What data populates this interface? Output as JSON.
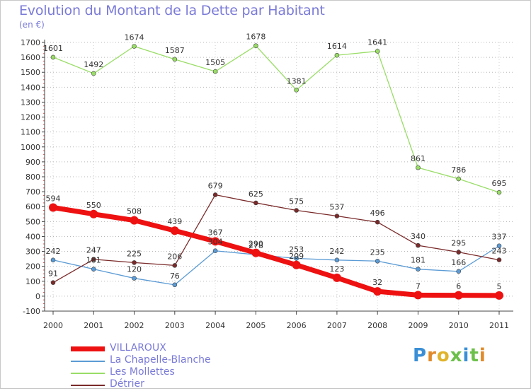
{
  "title": "Evolution du Montant de la Dette par Habitant",
  "unit": "(en €)",
  "logo": {
    "text": "Proxiti",
    "letter_colors": [
      "#3a8fd6",
      "#e08a2a",
      "#e0b32a",
      "#6cc04a",
      "#3a8fd6",
      "#6cc04a",
      "#e08a2a"
    ]
  },
  "chart_data": {
    "type": "line",
    "title": "Evolution du Montant de la Dette par Habitant",
    "subtitle": "(en €)",
    "x": [
      "2000",
      "2001",
      "2002",
      "2003",
      "2004",
      "2005",
      "2006",
      "2007",
      "2008",
      "2009",
      "2010",
      "2011"
    ],
    "yticks": [
      -100,
      0,
      100,
      200,
      300,
      400,
      500,
      600,
      700,
      800,
      900,
      1000,
      1100,
      1200,
      1300,
      1400,
      1500,
      1600,
      1700
    ],
    "ylim": [
      -100,
      1700
    ],
    "grid": "horizontal-dotted",
    "legend_position": "bottom-left",
    "series": [
      {
        "name": "La Chapelle-Blanche",
        "color": "#5b9bd5",
        "width": 1.3,
        "values": [
          242,
          181,
          120,
          76,
          304,
          278,
          253,
          242,
          235,
          181,
          166,
          337
        ],
        "labels": [
          "242",
          "181",
          "120",
          "76",
          "304",
          "278",
          "253",
          "242",
          "235",
          "181",
          "166",
          "337"
        ]
      },
      {
        "name": "Les Mollettes",
        "color": "#99dd66",
        "width": 1.3,
        "values": [
          1601,
          1492,
          1674,
          1587,
          1505,
          1678,
          1381,
          1614,
          1641,
          861,
          786,
          695
        ],
        "labels": [
          "1601",
          "1492",
          "1674",
          "1587",
          "1505",
          "1678",
          "1381",
          "1614",
          "1641",
          "861",
          "786",
          "695"
        ]
      },
      {
        "name": "Détrier",
        "color": "#7a2a2a",
        "width": 1.3,
        "values": [
          91,
          247,
          225,
          206,
          679,
          625,
          575,
          537,
          496,
          340,
          295,
          243
        ],
        "labels": [
          "91",
          "247",
          "225",
          "206",
          "679",
          "625",
          "575",
          "537",
          "496",
          "340",
          "295",
          "243"
        ]
      },
      {
        "name": "VILLAROUX",
        "color": "#ee1111",
        "width": 7,
        "values": [
          594,
          550,
          508,
          439,
          367,
          290,
          209,
          123,
          32,
          7,
          6,
          5
        ],
        "labels": [
          "594",
          "550",
          "508",
          "439",
          "367",
          "290",
          "209",
          "123",
          "32",
          "7",
          "6",
          "5"
        ]
      }
    ],
    "legend": [
      {
        "name": "VILLAROUX",
        "color": "#ee1111",
        "thick": true
      },
      {
        "name": "La Chapelle-Blanche",
        "color": "#5b9bd5",
        "thick": false
      },
      {
        "name": "Les Mollettes",
        "color": "#99dd66",
        "thick": false
      },
      {
        "name": "Détrier",
        "color": "#7a2a2a",
        "thick": false
      }
    ]
  }
}
